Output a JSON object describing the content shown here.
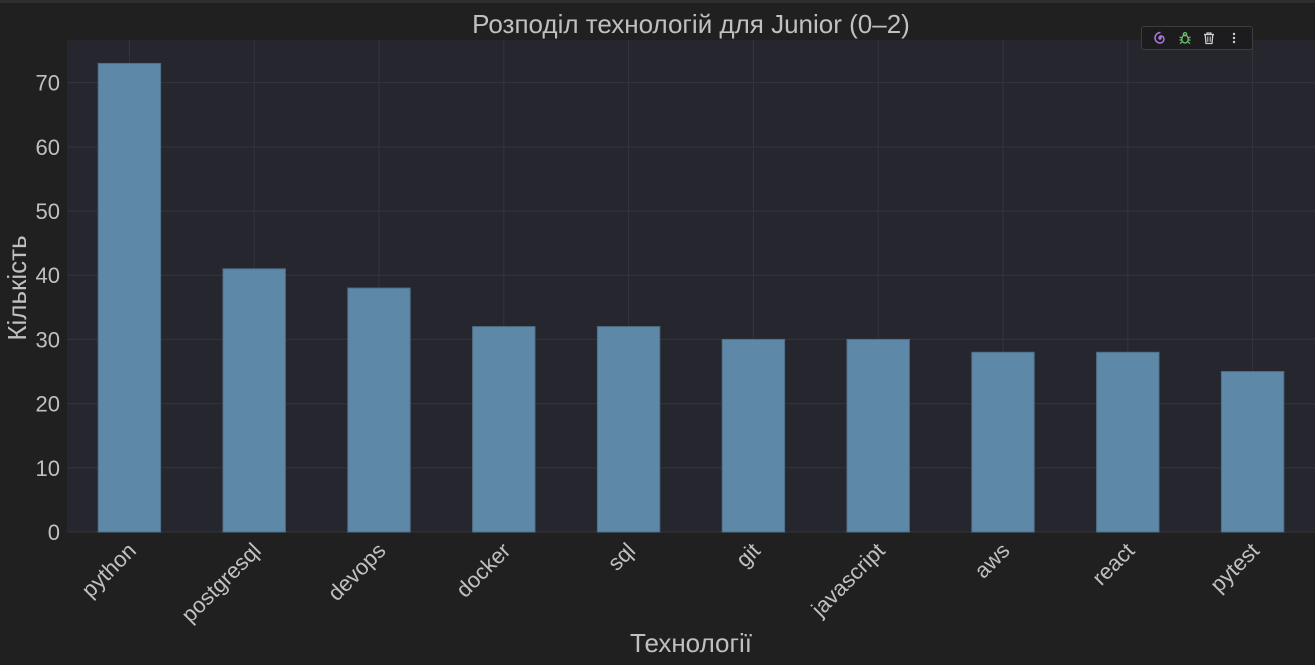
{
  "chart_data": {
    "type": "bar",
    "title": "Розподіл технологій для Junior (0–2)",
    "xlabel": "Технології",
    "ylabel": "Кількість",
    "categories": [
      "python",
      "postgresql",
      "devops",
      "docker",
      "sql",
      "git",
      "javascript",
      "aws",
      "react",
      "pytest"
    ],
    "values": [
      73,
      41,
      38,
      32,
      32,
      30,
      30,
      28,
      28,
      25
    ],
    "ylim": [
      0,
      76.65
    ],
    "yticks": [
      0,
      10,
      20,
      30,
      40,
      50,
      60,
      70
    ],
    "grid": true,
    "legend": "none",
    "colors": {
      "bar": "#5e88a8",
      "plot_background": "#26262f",
      "page_background": "#202020",
      "text": "#c0c0c0",
      "grid": "#34343c"
    }
  },
  "toolbar": {
    "icons": [
      "spiral-icon",
      "bug-icon",
      "trash-icon",
      "more-icon"
    ],
    "colors": {
      "spiral": "#b07ce8",
      "bug": "#6cc26c",
      "trash": "#d0d0d0",
      "more": "#d0d0d0"
    }
  }
}
